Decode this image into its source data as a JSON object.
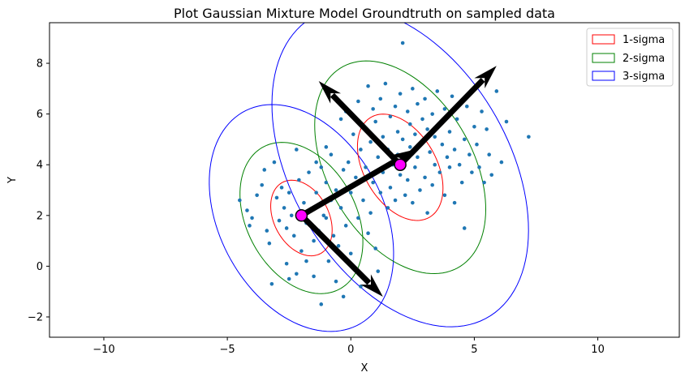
{
  "chart_data": {
    "type": "scatter",
    "title": "Plot Gaussian Mixture Model Groundtruth on sampled data",
    "xlabel": "X",
    "ylabel": "Y",
    "xlim": [
      -12.2,
      13.3
    ],
    "ylim": [
      -2.8,
      9.6
    ],
    "xticks": [
      -10,
      -5,
      0,
      5,
      10
    ],
    "yticks": [
      -2,
      0,
      2,
      4,
      6,
      8
    ],
    "grid": false,
    "legend_position": "top-right",
    "legend": [
      {
        "label": "1-sigma",
        "color": "#ff0000"
      },
      {
        "label": "2-sigma",
        "color": "#008000"
      },
      {
        "label": "3-sigma",
        "color": "#0000ff"
      }
    ],
    "point_color": "#1f77b4",
    "mean_color": "#ff00ff",
    "arrow_color": "#000000",
    "components": [
      {
        "mean": [
          -2,
          2
        ],
        "ellipse_center": [
          -2.0,
          1.9
        ],
        "sigma_radii": [
          1.6,
          1.1
        ],
        "angle_deg": -60,
        "eigen_arrows": [
          [
            2.6,
            4.6
          ],
          [
            1.3,
            -1.2
          ]
        ]
      },
      {
        "mean": [
          2,
          4
        ],
        "ellipse_center": [
          2.0,
          3.9
        ],
        "sigma_radii": [
          2.3,
          1.45
        ],
        "angle_deg": -58,
        "eigen_arrows": [
          [
            5.9,
            7.9
          ],
          [
            -1.3,
            7.3
          ]
        ]
      }
    ],
    "points": [
      [
        -4.5,
        2.6
      ],
      [
        -4.2,
        2.2
      ],
      [
        -4.0,
        1.9
      ],
      [
        -3.8,
        2.8
      ],
      [
        -3.6,
        3.2
      ],
      [
        -3.4,
        1.4
      ],
      [
        -3.3,
        0.9
      ],
      [
        -3.2,
        -0.7
      ],
      [
        -3.1,
        4.1
      ],
      [
        -3.0,
        2.7
      ],
      [
        -2.9,
        1.8
      ],
      [
        -2.8,
        3.1
      ],
      [
        -2.7,
        2.3
      ],
      [
        -2.6,
        1.5
      ],
      [
        -2.5,
        2.9
      ],
      [
        -2.5,
        -0.5
      ],
      [
        -2.4,
        2.0
      ],
      [
        -2.3,
        1.2
      ],
      [
        -2.2,
        4.6
      ],
      [
        -2.1,
        3.4
      ],
      [
        -2.0,
        0.6
      ],
      [
        -1.9,
        2.5
      ],
      [
        -1.8,
        1.7
      ],
      [
        -1.7,
        3.7
      ],
      [
        -1.6,
        2.2
      ],
      [
        -1.5,
        1.0
      ],
      [
        -1.5,
        -0.4
      ],
      [
        -1.4,
        2.9
      ],
      [
        -1.3,
        1.4
      ],
      [
        -1.2,
        3.9
      ],
      [
        -1.2,
        -1.5
      ],
      [
        -1.1,
        2.0
      ],
      [
        -1.0,
        3.3
      ],
      [
        -1.0,
        1.9
      ],
      [
        -0.9,
        0.2
      ],
      [
        -0.8,
        2.6
      ],
      [
        -0.8,
        4.4
      ],
      [
        -0.7,
        1.2
      ],
      [
        -0.6,
        3.0
      ],
      [
        -0.5,
        0.8
      ],
      [
        -0.4,
        2.3
      ],
      [
        -0.4,
        5.8
      ],
      [
        -0.3,
        3.8
      ],
      [
        -0.2,
        1.6
      ],
      [
        -0.2,
        6.1
      ],
      [
        -0.1,
        4.1
      ],
      [
        0.0,
        0.5
      ],
      [
        0.0,
        2.9
      ],
      [
        0.1,
        5.2
      ],
      [
        0.2,
        3.5
      ],
      [
        0.3,
        1.9
      ],
      [
        0.3,
        6.5
      ],
      [
        0.4,
        4.6
      ],
      [
        0.5,
        2.6
      ],
      [
        0.5,
        5.5
      ],
      [
        0.6,
        3.9
      ],
      [
        0.7,
        1.3
      ],
      [
        0.7,
        7.1
      ],
      [
        0.8,
        4.9
      ],
      [
        0.8,
        2.1
      ],
      [
        0.9,
        6.2
      ],
      [
        0.9,
        3.3
      ],
      [
        1.0,
        5.7
      ],
      [
        1.0,
        0.7
      ],
      [
        1.1,
        4.3
      ],
      [
        1.2,
        6.6
      ],
      [
        1.2,
        2.9
      ],
      [
        1.3,
        5.1
      ],
      [
        1.3,
        3.7
      ],
      [
        1.4,
        7.2
      ],
      [
        1.5,
        4.6
      ],
      [
        1.5,
        2.3
      ],
      [
        1.6,
        5.9
      ],
      [
        1.6,
        3.1
      ],
      [
        1.7,
        4.0
      ],
      [
        1.8,
        6.3
      ],
      [
        1.8,
        2.6
      ],
      [
        1.9,
        5.3
      ],
      [
        1.9,
        4.4
      ],
      [
        2.0,
        3.6
      ],
      [
        2.0,
        6.8
      ],
      [
        2.1,
        8.8
      ],
      [
        2.1,
        5.0
      ],
      [
        2.2,
        4.2
      ],
      [
        2.2,
        2.8
      ],
      [
        2.3,
        6.1
      ],
      [
        2.3,
        3.4
      ],
      [
        2.4,
        5.6
      ],
      [
        2.4,
        4.7
      ],
      [
        2.5,
        7.0
      ],
      [
        2.5,
        2.5
      ],
      [
        2.6,
        5.2
      ],
      [
        2.6,
        3.9
      ],
      [
        2.7,
        6.4
      ],
      [
        2.7,
        4.3
      ],
      [
        2.8,
        3.0
      ],
      [
        2.9,
        5.8
      ],
      [
        2.9,
        4.9
      ],
      [
        3.0,
        3.5
      ],
      [
        3.0,
        6.6
      ],
      [
        3.1,
        2.1
      ],
      [
        3.1,
        5.4
      ],
      [
        3.2,
        4.5
      ],
      [
        3.3,
        6.0
      ],
      [
        3.3,
        3.2
      ],
      [
        3.4,
        5.1
      ],
      [
        3.4,
        4.0
      ],
      [
        3.5,
        6.9
      ],
      [
        3.6,
        3.7
      ],
      [
        3.6,
        5.6
      ],
      [
        3.7,
        4.8
      ],
      [
        3.8,
        2.8
      ],
      [
        3.8,
        6.2
      ],
      [
        3.9,
        4.3
      ],
      [
        4.0,
        5.3
      ],
      [
        4.0,
        3.9
      ],
      [
        4.1,
        6.7
      ],
      [
        4.2,
        4.6
      ],
      [
        4.2,
        2.5
      ],
      [
        4.3,
        5.8
      ],
      [
        4.4,
        4.0
      ],
      [
        4.5,
        3.3
      ],
      [
        4.6,
        5.0
      ],
      [
        4.6,
        1.5
      ],
      [
        4.7,
        6.3
      ],
      [
        4.8,
        4.4
      ],
      [
        4.9,
        3.7
      ],
      [
        5.0,
        5.5
      ],
      [
        5.1,
        4.8
      ],
      [
        5.2,
        3.9
      ],
      [
        5.3,
        6.1
      ],
      [
        5.4,
        3.3
      ],
      [
        5.5,
        5.4
      ],
      [
        5.6,
        4.4
      ],
      [
        5.7,
        3.6
      ],
      [
        5.9,
        6.9
      ],
      [
        6.1,
        4.1
      ],
      [
        6.3,
        5.7
      ],
      [
        7.2,
        5.1
      ],
      [
        -1.0,
        4.7
      ],
      [
        -0.3,
        -1.2
      ],
      [
        -2.6,
        0.1
      ],
      [
        -3.5,
        3.8
      ],
      [
        -0.6,
        -0.6
      ],
      [
        1.1,
        -0.2
      ],
      [
        -1.4,
        4.1
      ],
      [
        0.4,
        -0.8
      ],
      [
        -2.2,
        -0.3
      ],
      [
        -4.1,
        1.6
      ],
      [
        -1.8,
        0.2
      ]
    ]
  }
}
